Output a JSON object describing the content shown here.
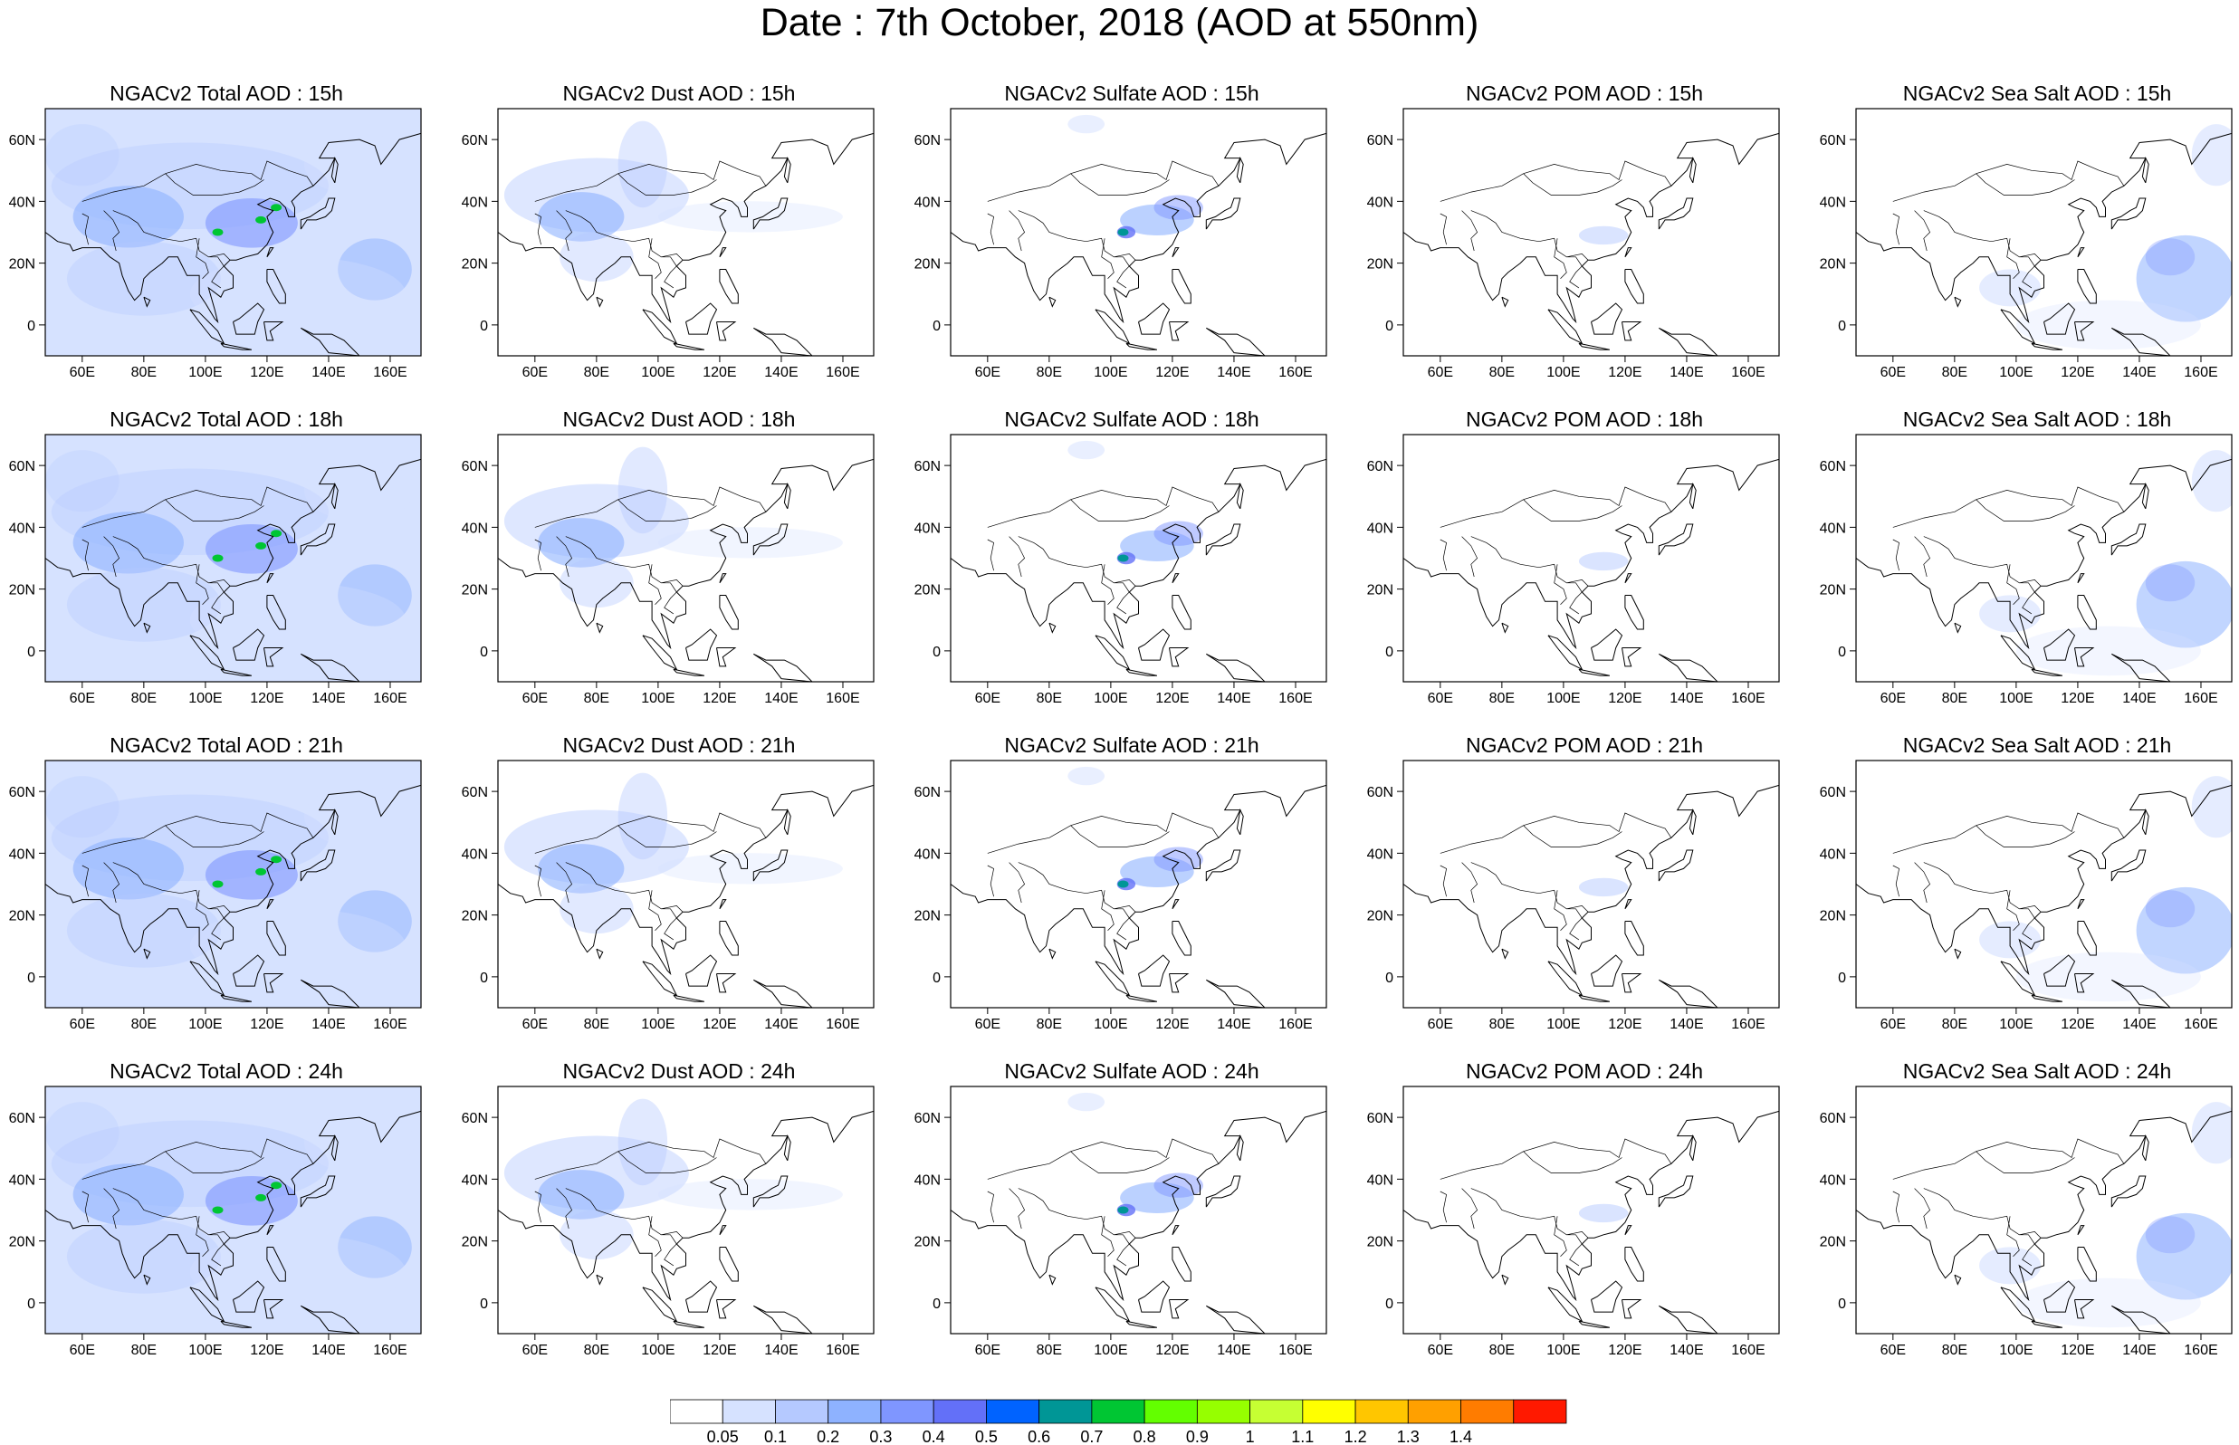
{
  "title": "Date : 7th October, 2018 (AOD at 550nm)",
  "map_extent": {
    "lon": [
      48,
      170
    ],
    "lat": [
      -10,
      70
    ]
  },
  "x_ticks": [
    "60E",
    "80E",
    "100E",
    "120E",
    "140E",
    "160E"
  ],
  "y_ticks": [
    "60N",
    "40N",
    "20N",
    "0"
  ],
  "panels": [
    [
      "NGACv2 Total AOD : 15h",
      "NGACv2 Dust AOD : 15h",
      "NGACv2 Sulfate AOD : 15h",
      "NGACv2 POM AOD : 15h",
      "NGACv2 Sea Salt AOD : 15h"
    ],
    [
      "NGACv2 Total AOD : 18h",
      "NGACv2 Dust AOD : 18h",
      "NGACv2 Sulfate AOD : 18h",
      "NGACv2 POM AOD : 18h",
      "NGACv2 Sea Salt AOD : 18h"
    ],
    [
      "NGACv2 Total AOD : 21h",
      "NGACv2 Dust AOD : 21h",
      "NGACv2 Sulfate AOD : 21h",
      "NGACv2 POM AOD : 21h",
      "NGACv2 Sea Salt AOD : 21h"
    ],
    [
      "NGACv2 Total AOD : 24h",
      "NGACv2 Dust AOD : 24h",
      "NGACv2 Sulfate AOD : 24h",
      "NGACv2 POM AOD : 24h",
      "NGACv2 Sea Salt  AOD : 24h"
    ]
  ],
  "colorbar": {
    "labels": [
      "0.05",
      "0.1",
      "0.2",
      "0.3",
      "0.4",
      "0.5",
      "0.6",
      "0.7",
      "0.8",
      "0.9",
      "1",
      "1.1",
      "1.2",
      "1.3",
      "1.4"
    ],
    "colors": [
      "#ffffff",
      "#d6e2ff",
      "#b5c9ff",
      "#8eb2ff",
      "#7f96ff",
      "#6370f8",
      "#0063ff",
      "#009696",
      "#00c633",
      "#63ff00",
      "#96ff00",
      "#c6ff33",
      "#ffff00",
      "#ffc600",
      "#ffa000",
      "#ff7c00",
      "#ff1900"
    ]
  }
}
